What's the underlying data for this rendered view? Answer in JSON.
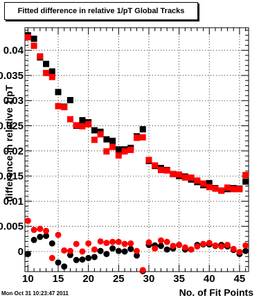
{
  "chart_data": {
    "type": "scatter",
    "title": "Fitted difference in relative 1/pT  Global Tracks",
    "xlabel": "No. of Fit Points",
    "ylabel": "difference in relative 1/pT",
    "xlim": [
      9.5,
      46.5
    ],
    "ylim": [
      -0.004,
      0.0445
    ],
    "grid": true,
    "x_ticks": [
      10,
      15,
      20,
      25,
      30,
      35,
      40,
      45
    ],
    "y_ticks": [
      0,
      0.005,
      0.01,
      0.015,
      0.02,
      0.025,
      0.03,
      0.035,
      0.04
    ],
    "y_tick_labels": [
      "0",
      "0.005",
      "0.01",
      "0.015",
      "0.02",
      "0.025",
      "0.03",
      "0.035",
      "0.04"
    ],
    "x_tick_labels": [
      "10",
      "15",
      "20",
      "25",
      "30",
      "35",
      "40",
      "45"
    ],
    "series": [
      {
        "marker": "square",
        "color": "#000000",
        "points": [
          [
            10,
            0.043
          ],
          [
            11,
            0.0423
          ],
          [
            12,
            0.0386
          ],
          [
            13,
            0.0373
          ],
          [
            14,
            0.0358
          ],
          [
            15,
            0.0317
          ],
          [
            16,
            0.0288
          ],
          [
            17,
            0.0301
          ],
          [
            18,
            0.025
          ],
          [
            19,
            0.0261
          ],
          [
            20,
            0.0257
          ],
          [
            21,
            0.0241
          ],
          [
            22,
            0.0238
          ],
          [
            23,
            0.0223
          ],
          [
            24,
            0.022
          ],
          [
            25,
            0.0203
          ],
          [
            26,
            0.0203
          ],
          [
            27,
            0.0206
          ],
          [
            28,
            0.0229
          ],
          [
            29,
            0.0243
          ],
          [
            30,
            0.018
          ],
          [
            31,
            0.017
          ],
          [
            32,
            0.0166
          ],
          [
            33,
            0.0162
          ],
          [
            34,
            0.0154
          ],
          [
            35,
            0.015
          ],
          [
            36,
            0.0149
          ],
          [
            37,
            0.0143
          ],
          [
            38,
            0.0138
          ],
          [
            39,
            0.0132
          ],
          [
            40,
            0.0136
          ],
          [
            41,
            0.0126
          ],
          [
            42,
            0.0121
          ],
          [
            43,
            0.0124
          ],
          [
            44,
            0.0126
          ],
          [
            45,
            0.0125
          ],
          [
            46,
            0.0139
          ]
        ]
      },
      {
        "marker": "square",
        "color": "#ff0000",
        "points": [
          [
            10,
            0.0426
          ],
          [
            11,
            0.0409
          ],
          [
            12,
            0.0388
          ],
          [
            13,
            0.0355
          ],
          [
            14,
            0.0347
          ],
          [
            15,
            0.0289
          ],
          [
            16,
            0.0287
          ],
          [
            17,
            0.0263
          ],
          [
            18,
            0.0251
          ],
          [
            19,
            0.0249
          ],
          [
            20,
            0.0253
          ],
          [
            21,
            0.0222
          ],
          [
            22,
            0.0233
          ],
          [
            23,
            0.0199
          ],
          [
            24,
            0.0208
          ],
          [
            25,
            0.0191
          ],
          [
            26,
            0.0199
          ],
          [
            27,
            0.0202
          ],
          [
            28,
            0.0226
          ],
          [
            29,
            0.0227
          ],
          [
            30,
            0.0182
          ],
          [
            31,
            0.0171
          ],
          [
            32,
            0.0162
          ],
          [
            33,
            0.0161
          ],
          [
            34,
            0.0154
          ],
          [
            35,
            0.0153
          ],
          [
            36,
            0.0147
          ],
          [
            37,
            0.0147
          ],
          [
            38,
            0.0141
          ],
          [
            39,
            0.0135
          ],
          [
            40,
            0.0128
          ],
          [
            41,
            0.0125
          ],
          [
            42,
            0.0121
          ],
          [
            43,
            0.0127
          ],
          [
            44,
            0.0124
          ],
          [
            45,
            0.0124
          ],
          [
            46,
            0.0152
          ]
        ]
      },
      {
        "marker": "circle",
        "color": "#000000",
        "points": [
          [
            10,
            -0.0005
          ],
          [
            11,
            0.0023
          ],
          [
            12,
            0.0029
          ],
          [
            13,
            0.0031
          ],
          [
            14,
            0.0016
          ],
          [
            15,
            -0.0022
          ],
          [
            16,
            -0.003
          ],
          [
            17,
            -0.0007
          ],
          [
            18,
            -0.0017
          ],
          [
            19,
            -0.0016
          ],
          [
            20,
            -0.0013
          ],
          [
            21,
            -0.0011
          ],
          [
            22,
            0.0001
          ],
          [
            23,
            -0.0005
          ],
          [
            24,
            0.0006
          ],
          [
            25,
            0.0001
          ],
          [
            26,
            0.0
          ],
          [
            27,
            0.0005
          ],
          [
            28,
            -0.0008
          ],
          [
            29,
            -0.0039
          ],
          [
            30,
            0.0013
          ],
          [
            31,
            0.0012
          ],
          [
            32,
            0.0011
          ],
          [
            33,
            0.0004
          ],
          [
            34,
            0.0006
          ],
          [
            35,
            0.0013
          ],
          [
            36,
            0.0004
          ],
          [
            37,
            0.0004
          ],
          [
            38,
            0.0013
          ],
          [
            39,
            0.0014
          ],
          [
            40,
            0.0014
          ],
          [
            41,
            0.0011
          ],
          [
            42,
            0.0013
          ],
          [
            43,
            0.001
          ],
          [
            44,
            0.0003
          ],
          [
            45,
            -0.0005
          ],
          [
            46,
            0.0001
          ]
        ]
      },
      {
        "marker": "circle",
        "color": "#ff0000",
        "points": [
          [
            10,
            0.0061
          ],
          [
            11,
            0.0043
          ],
          [
            12,
            0.0045
          ],
          [
            13,
            0.0041
          ],
          [
            14,
            -0.0013
          ],
          [
            15,
            0.0033
          ],
          [
            16,
            0.0002
          ],
          [
            17,
            0.0001
          ],
          [
            18,
            0.0015
          ],
          [
            19,
            0.0
          ],
          [
            20,
            0.0016
          ],
          [
            21,
            0.0004
          ],
          [
            22,
            0.002
          ],
          [
            23,
            0.0017
          ],
          [
            24,
            0.0019
          ],
          [
            25,
            0.0019
          ],
          [
            26,
            0.0015
          ],
          [
            27,
            0.0016
          ],
          [
            28,
            0.0001
          ],
          [
            29,
            -0.0037
          ],
          [
            30,
            0.0018
          ],
          [
            31,
            0.0006
          ],
          [
            32,
            0.0022
          ],
          [
            33,
            0.0019
          ],
          [
            34,
            0.0011
          ],
          [
            35,
            0.0013
          ],
          [
            36,
            0.0008
          ],
          [
            37,
            0.0004
          ],
          [
            38,
            0.001
          ],
          [
            39,
            0.0015
          ],
          [
            40,
            0.0017
          ],
          [
            41,
            0.0012
          ],
          [
            42,
            0.001
          ],
          [
            43,
            0.0013
          ],
          [
            44,
            0.0005
          ],
          [
            45,
            -0.0001
          ],
          [
            46,
            0.0012
          ]
        ]
      }
    ]
  },
  "footer": {
    "datestamp": "Mon Oct 31 10:23:47 2011"
  }
}
